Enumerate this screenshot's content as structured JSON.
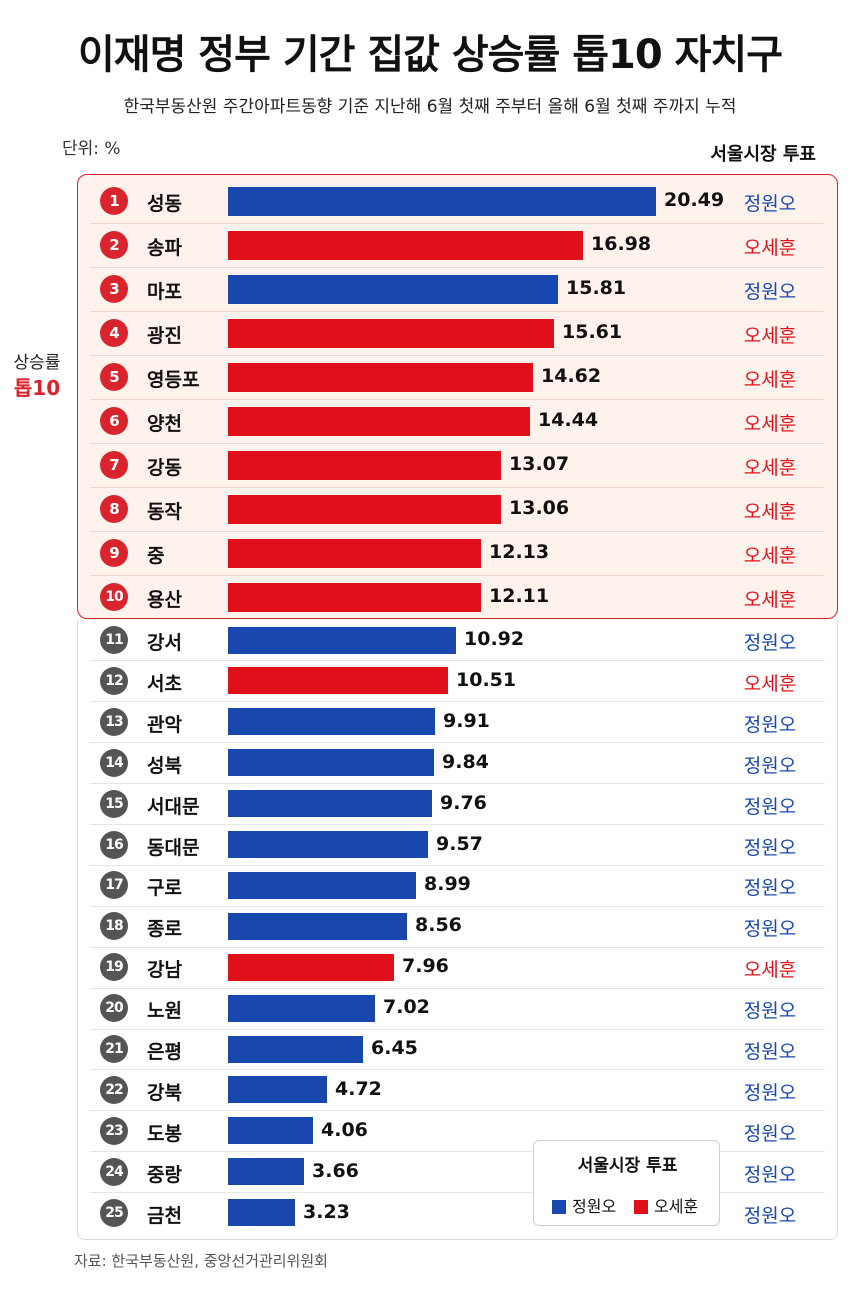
{
  "title": "이재명 정부 기간 집값 상승률 톱10 자치구",
  "subtitle": "한국부동산원 주간아파트동향 기준 지난해 6월 첫째 주부터 올해 6월 첫째 주까지 누적",
  "unit_label": "단위: %",
  "vote_header": "서울시장 투표",
  "side_label": {
    "line1": "상승률",
    "line2": "톱10"
  },
  "legend": {
    "title": "서울시장 투표",
    "items": [
      "정원오",
      "오세훈"
    ]
  },
  "source": "자료: 한국부동산원, 중앙선거관리위원회",
  "colors": {
    "정원오": "#1847ad",
    "오세훈": "#e0101a",
    "accent_red": "#d9232d",
    "rank_gray": "#555555"
  },
  "chart_data": {
    "type": "bar",
    "orientation": "horizontal",
    "categories": [
      "성동",
      "송파",
      "마포",
      "광진",
      "영등포",
      "양천",
      "강동",
      "동작",
      "중",
      "용산",
      "강서",
      "서초",
      "관악",
      "성북",
      "서대문",
      "동대문",
      "구로",
      "종로",
      "강남",
      "노원",
      "은평",
      "강북",
      "도봉",
      "중랑",
      "금천"
    ],
    "ranks": [
      "1",
      "2",
      "3",
      "4",
      "5",
      "6",
      "7",
      "8",
      "9",
      "10",
      "11",
      "12",
      "13",
      "14",
      "15",
      "16",
      "17",
      "18",
      "19",
      "20",
      "21",
      "22",
      "23",
      "24",
      "25"
    ],
    "values": [
      20.49,
      16.98,
      15.81,
      15.61,
      14.62,
      14.44,
      13.07,
      13.06,
      12.13,
      12.11,
      10.92,
      10.51,
      9.91,
      9.84,
      9.76,
      9.57,
      8.99,
      8.56,
      7.96,
      7.02,
      6.45,
      4.72,
      4.06,
      3.66,
      3.23
    ],
    "value_labels": [
      "20.49",
      "16.98",
      "15.81",
      "15.61",
      "14.62",
      "14.44",
      "13.07",
      "13.06",
      "12.13",
      "12.11",
      "10.92",
      "10.51",
      "9.91",
      "9.84",
      "9.76",
      "9.57",
      "8.99",
      "8.56",
      "7.96",
      "7.02",
      "6.45",
      "4.72",
      "4.06",
      "3.66",
      "3.23"
    ],
    "vote": [
      "정원오",
      "오세훈",
      "정원오",
      "오세훈",
      "오세훈",
      "오세훈",
      "오세훈",
      "오세훈",
      "오세훈",
      "오세훈",
      "정원오",
      "오세훈",
      "정원오",
      "정원오",
      "정원오",
      "정원오",
      "정원오",
      "정원오",
      "오세훈",
      "정원오",
      "정원오",
      "정원오",
      "정원오",
      "정원오",
      "정원오"
    ],
    "top_n": 10,
    "xlim": [
      0,
      20.49
    ]
  }
}
